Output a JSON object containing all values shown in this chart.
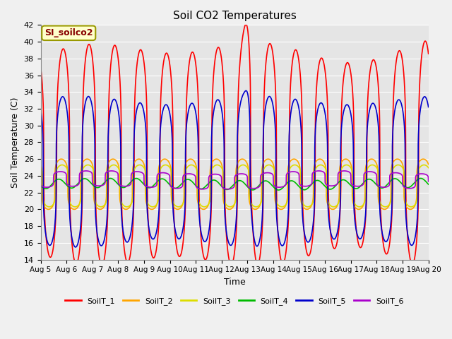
{
  "title": "Soil CO2 Temperatures",
  "xlabel": "Time",
  "ylabel": "Soil Temperature (C)",
  "ylim": [
    14,
    42
  ],
  "xlim": [
    0,
    15
  ],
  "annotation": "SI_soilco2",
  "x_tick_labels": [
    "Aug 5",
    "Aug 6",
    "Aug 7",
    "Aug 8",
    "Aug 9",
    "Aug 10",
    "Aug 11",
    "Aug 12",
    "Aug 13",
    "Aug 14",
    "Aug 15",
    "Aug 16",
    "Aug 17",
    "Aug 18",
    "Aug 19",
    "Aug 20"
  ],
  "series": [
    {
      "name": "SoilT_1",
      "color": "#ff0000"
    },
    {
      "name": "SoilT_2",
      "color": "#ffa500"
    },
    {
      "name": "SoilT_3",
      "color": "#dddd00"
    },
    {
      "name": "SoilT_4",
      "color": "#00bb00"
    },
    {
      "name": "SoilT_5",
      "color": "#0000cc"
    },
    {
      "name": "SoilT_6",
      "color": "#aa00cc"
    }
  ],
  "bg_color": "#e5e5e5",
  "grid_color": "#ffffff",
  "linewidth": 1.2,
  "fig_bg": "#f0f0f0"
}
